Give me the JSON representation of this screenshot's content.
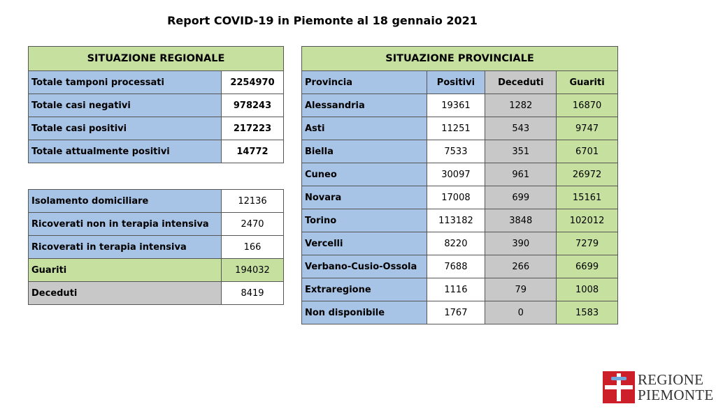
{
  "title": "Report COVID-19 in Piemonte al 18 gennaio 2021",
  "regional": {
    "header": "SITUAZIONE REGIONALE",
    "rows": [
      {
        "label": "Totale tamponi processati",
        "value": "2254970"
      },
      {
        "label": "Totale casi negativi",
        "value": "978243"
      },
      {
        "label": "Totale casi positivi",
        "value": "217223"
      },
      {
        "label": "Totale attualmente positivi",
        "value": "14772"
      }
    ]
  },
  "details": {
    "rows": [
      {
        "label": "Isolamento domiciliare",
        "value": "12136"
      },
      {
        "label": "Ricoverati non in terapia intensiva",
        "value": "2470"
      },
      {
        "label": "Ricoverati in terapia intensiva",
        "value": "166"
      },
      {
        "label": "Guariti",
        "value": "194032"
      },
      {
        "label": "Deceduti",
        "value": "8419"
      }
    ]
  },
  "provincial": {
    "header": "SITUAZIONE PROVINCIALE",
    "columns": [
      "Provincia",
      "Positivi",
      "Deceduti",
      "Guariti"
    ],
    "rows": [
      {
        "name": "Alessandria",
        "positivi": "19361",
        "deceduti": "1282",
        "guariti": "16870"
      },
      {
        "name": "Asti",
        "positivi": "11251",
        "deceduti": "543",
        "guariti": "9747"
      },
      {
        "name": "Biella",
        "positivi": "7533",
        "deceduti": "351",
        "guariti": "6701"
      },
      {
        "name": "Cuneo",
        "positivi": "30097",
        "deceduti": "961",
        "guariti": "26972"
      },
      {
        "name": "Novara",
        "positivi": "17008",
        "deceduti": "699",
        "guariti": "15161"
      },
      {
        "name": "Torino",
        "positivi": "113182",
        "deceduti": "3848",
        "guariti": "102012"
      },
      {
        "name": "Vercelli",
        "positivi": "8220",
        "deceduti": "390",
        "guariti": "7279"
      },
      {
        "name": "Verbano-Cusio-Ossola",
        "positivi": "7688",
        "deceduti": "266",
        "guariti": "6699"
      },
      {
        "name": "Extraregione",
        "positivi": "1116",
        "deceduti": "79",
        "guariti": "1008"
      },
      {
        "name": "Non disponibile",
        "positivi": "1767",
        "deceduti": "0",
        "guariti": "1583"
      }
    ]
  },
  "logo": {
    "line1": "REGIONE",
    "line2": "PIEMONTE"
  },
  "colors": {
    "header_green": "#c6e0a0",
    "blue": "#a7c3e6",
    "grey": "#c8c8c8",
    "logo_red": "#cc1f2a"
  }
}
